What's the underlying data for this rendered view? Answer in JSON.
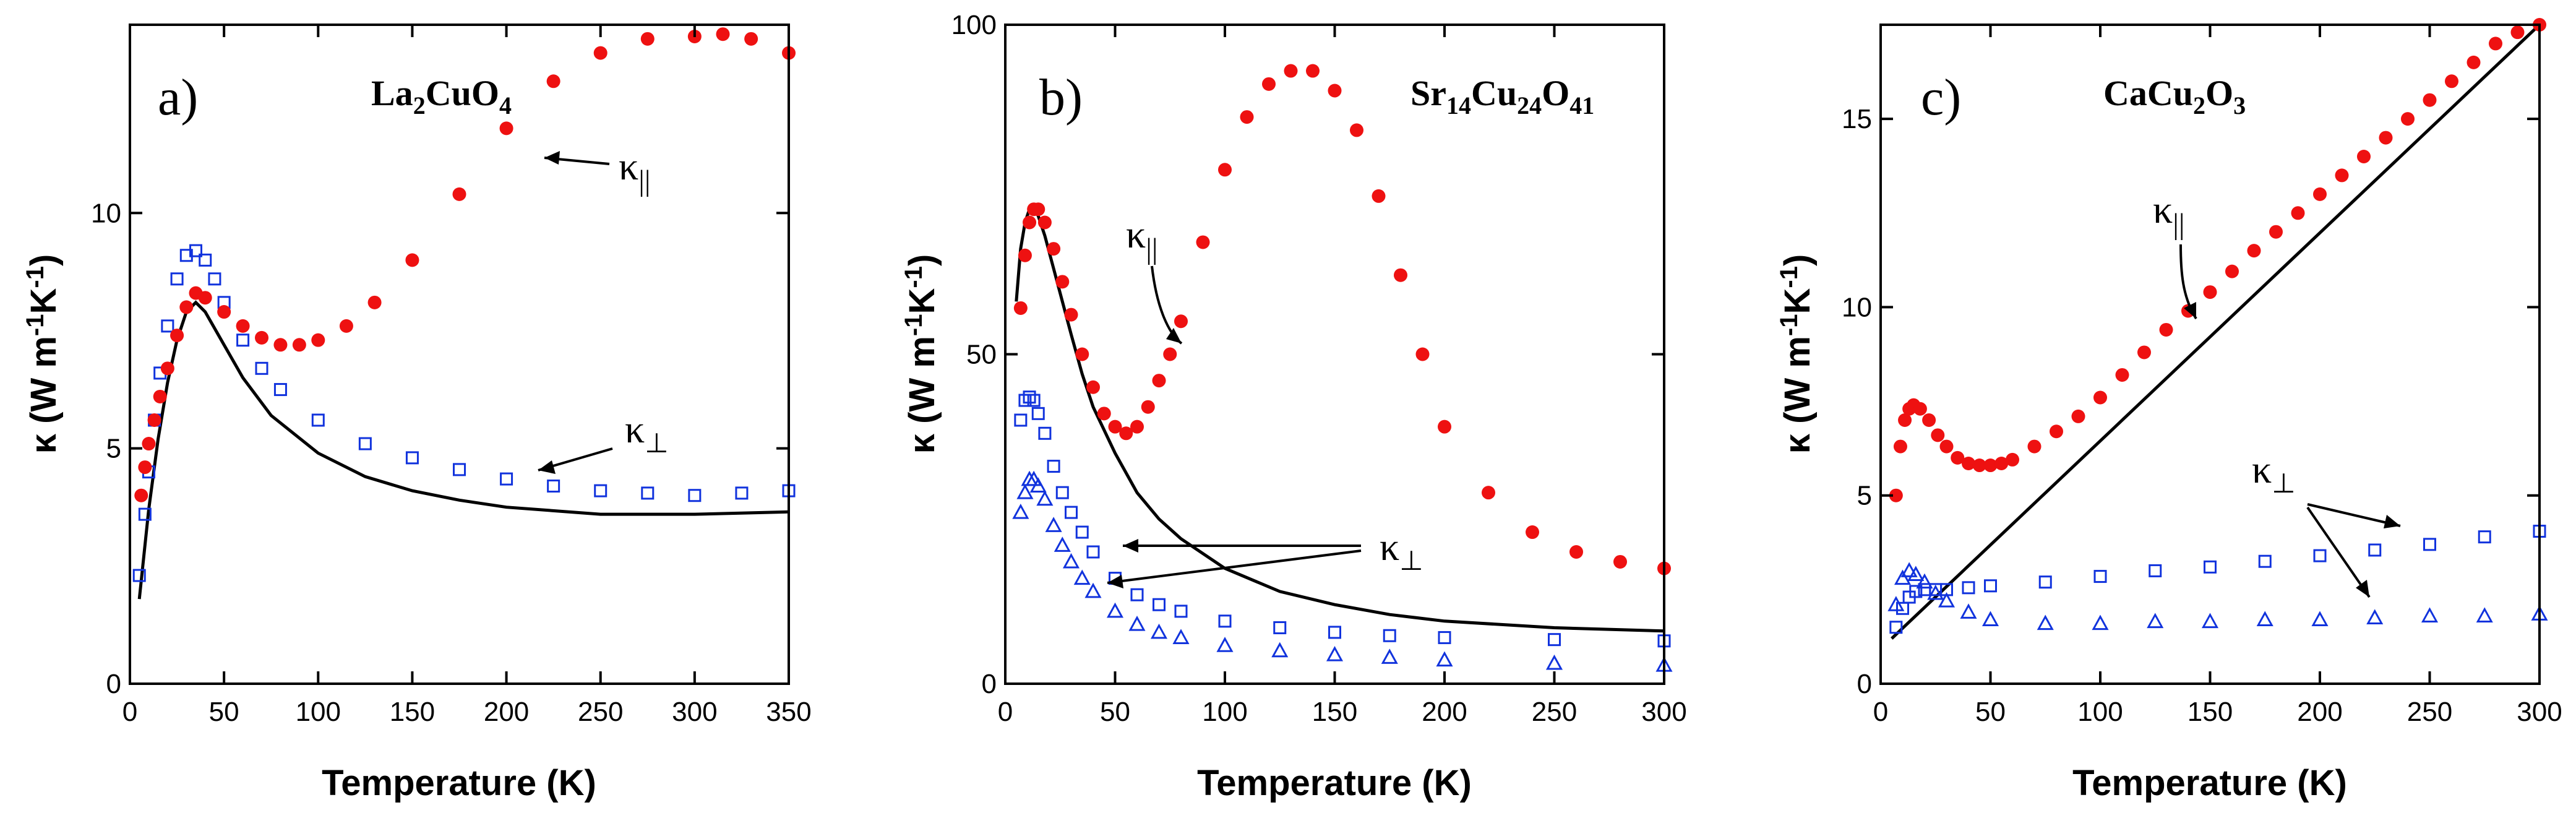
{
  "colors": {
    "red": "#ee1111",
    "blue": "#1133dd",
    "black": "#000000"
  },
  "panels": [
    {
      "tag": "a)",
      "compound": [
        "La",
        "2",
        "CuO",
        "4"
      ],
      "xlabel": "Temperature (K)",
      "ylabel": [
        "κ (W m",
        "-1",
        "K",
        "-1",
        ")"
      ],
      "xticks": [
        "0",
        "50",
        "100",
        "150",
        "200",
        "250",
        "300",
        "350"
      ],
      "yticks": [
        "0",
        "5",
        "10"
      ],
      "kpar": [
        "κ",
        "||"
      ],
      "kperp": [
        "κ",
        "⊥"
      ]
    },
    {
      "tag": "b)",
      "compound": [
        "Sr",
        "14",
        "Cu",
        "24",
        "O",
        "41"
      ],
      "xlabel": "Temperature (K)",
      "ylabel": [
        "κ (W m",
        "-1",
        "K",
        "-1",
        ")"
      ],
      "xticks": [
        "0",
        "50",
        "100",
        "150",
        "200",
        "250",
        "300"
      ],
      "yticks": [
        "0",
        "50",
        "100"
      ],
      "kpar": [
        "κ",
        "||"
      ],
      "kperp": [
        "κ",
        "⊥"
      ]
    },
    {
      "tag": "c)",
      "compound": [
        "CaCu",
        "2",
        "O",
        "3"
      ],
      "xlabel": "Temperature (K)",
      "ylabel": [
        "κ (W m",
        "-1",
        "K",
        "-1",
        ")"
      ],
      "xticks": [
        "0",
        "50",
        "100",
        "150",
        "200",
        "250",
        "300"
      ],
      "yticks": [
        "0",
        "5",
        "10",
        "15"
      ],
      "kpar": [
        "κ",
        "||"
      ],
      "kperp": [
        "κ",
        "⊥"
      ]
    }
  ],
  "chart_data": [
    {
      "type": "scatter",
      "xlim": [
        0,
        350
      ],
      "ylim": [
        0,
        14
      ],
      "xticks": [
        0,
        50,
        100,
        150,
        200,
        250,
        300,
        350
      ],
      "yticks": [
        0,
        5,
        10
      ],
      "series": [
        {
          "marker": "filled-circle",
          "color": "red",
          "x": [
            6,
            8,
            10,
            13,
            16,
            20,
            25,
            30,
            35,
            40,
            50,
            60,
            70,
            80,
            90,
            100,
            115,
            130,
            150,
            175,
            200,
            225,
            250,
            275,
            300,
            315,
            330,
            350
          ],
          "y": [
            4.0,
            4.6,
            5.1,
            5.6,
            6.1,
            6.7,
            7.4,
            8.0,
            8.3,
            8.2,
            7.9,
            7.6,
            7.35,
            7.2,
            7.2,
            7.3,
            7.6,
            8.1,
            9.0,
            10.4,
            11.8,
            12.8,
            13.4,
            13.7,
            13.75,
            13.8,
            13.7,
            13.4
          ]
        },
        {
          "marker": "open-square",
          "color": "blue",
          "x": [
            5,
            8,
            10,
            13,
            16,
            20,
            25,
            30,
            35,
            40,
            45,
            50,
            60,
            70,
            80,
            100,
            125,
            150,
            175,
            200,
            225,
            250,
            275,
            300,
            325,
            350
          ],
          "y": [
            2.3,
            3.6,
            4.5,
            5.6,
            6.6,
            7.6,
            8.6,
            9.1,
            9.2,
            9.0,
            8.6,
            8.1,
            7.3,
            6.7,
            6.25,
            5.6,
            5.1,
            4.8,
            4.55,
            4.35,
            4.2,
            4.1,
            4.05,
            4.0,
            4.05,
            4.1
          ]
        },
        {
          "marker": "line",
          "color": "black",
          "x": [
            5,
            10,
            15,
            20,
            25,
            30,
            35,
            40,
            50,
            60,
            75,
            100,
            125,
            150,
            175,
            200,
            250,
            300,
            350
          ],
          "y": [
            1.8,
            3.7,
            5.2,
            6.4,
            7.3,
            7.9,
            8.1,
            7.9,
            7.2,
            6.5,
            5.7,
            4.9,
            4.4,
            4.1,
            3.9,
            3.75,
            3.6,
            3.6,
            3.65
          ]
        }
      ]
    },
    {
      "type": "scatter",
      "xlim": [
        0,
        300
      ],
      "ylim": [
        0,
        100
      ],
      "xticks": [
        0,
        50,
        100,
        150,
        200,
        250,
        300
      ],
      "yticks": [
        0,
        50,
        100
      ],
      "series": [
        {
          "marker": "filled-circle",
          "color": "red",
          "x": [
            7,
            9,
            11,
            13,
            15,
            18,
            22,
            26,
            30,
            35,
            40,
            45,
            50,
            55,
            60,
            65,
            70,
            75,
            80,
            90,
            100,
            110,
            120,
            130,
            140,
            150,
            160,
            170,
            180,
            190,
            200,
            220,
            240,
            260,
            280,
            300
          ],
          "y": [
            57,
            65,
            70,
            72,
            72,
            70,
            66,
            61,
            56,
            50,
            45,
            41,
            39,
            38,
            39,
            42,
            46,
            50,
            55,
            67,
            78,
            86,
            91,
            93,
            93,
            90,
            84,
            74,
            62,
            50,
            39,
            29,
            23,
            20,
            18.5,
            17.5
          ]
        },
        {
          "marker": "open-square",
          "color": "blue",
          "x": [
            7,
            9,
            11,
            13,
            15,
            18,
            22,
            26,
            30,
            35,
            40,
            50,
            60,
            70,
            80,
            100,
            125,
            150,
            175,
            200,
            250,
            300
          ],
          "y": [
            40,
            43,
            43.5,
            43,
            41,
            38,
            33,
            29,
            26,
            23,
            20,
            16,
            13.5,
            12,
            11,
            9.5,
            8.5,
            7.8,
            7.3,
            7.0,
            6.7,
            6.5
          ]
        },
        {
          "marker": "open-triangle",
          "color": "blue",
          "x": [
            7,
            9,
            11,
            13,
            15,
            18,
            22,
            26,
            30,
            35,
            40,
            50,
            60,
            70,
            80,
            100,
            125,
            150,
            175,
            200,
            250,
            300
          ],
          "y": [
            26,
            29,
            31,
            31,
            30,
            28,
            24,
            21,
            18.5,
            16,
            14,
            11,
            9,
            7.8,
            7,
            5.8,
            5,
            4.4,
            4,
            3.6,
            3.1,
            2.8
          ]
        },
        {
          "marker": "line",
          "color": "black",
          "x": [
            5,
            7,
            9,
            11,
            13,
            15,
            18,
            22,
            26,
            30,
            35,
            40,
            50,
            60,
            70,
            80,
            100,
            125,
            150,
            175,
            200,
            250,
            300
          ],
          "y": [
            58,
            66,
            70,
            72,
            72,
            71,
            68,
            63,
            58,
            53,
            47,
            42,
            35,
            29,
            25,
            22,
            17.5,
            14,
            12,
            10.5,
            9.5,
            8.5,
            8
          ]
        }
      ]
    },
    {
      "type": "scatter",
      "xlim": [
        0,
        300
      ],
      "ylim": [
        0,
        17.5
      ],
      "xticks": [
        0,
        50,
        100,
        150,
        200,
        250,
        300
      ],
      "yticks": [
        0,
        5,
        10,
        15
      ],
      "series": [
        {
          "marker": "filled-circle",
          "color": "red",
          "x": [
            7,
            9,
            11,
            13,
            15,
            18,
            22,
            26,
            30,
            35,
            40,
            45,
            50,
            55,
            60,
            70,
            80,
            90,
            100,
            110,
            120,
            130,
            140,
            150,
            160,
            170,
            180,
            190,
            200,
            210,
            220,
            230,
            240,
            250,
            260,
            270,
            280,
            290,
            300
          ],
          "y": [
            5.0,
            6.3,
            7.0,
            7.3,
            7.4,
            7.3,
            7.0,
            6.6,
            6.3,
            6.0,
            5.85,
            5.8,
            5.8,
            5.85,
            5.95,
            6.3,
            6.7,
            7.1,
            7.6,
            8.2,
            8.8,
            9.4,
            9.9,
            10.4,
            10.95,
            11.5,
            12.0,
            12.5,
            13.0,
            13.5,
            14.0,
            14.5,
            15.0,
            15.5,
            16.0,
            16.5,
            17.0,
            17.3,
            17.5
          ]
        },
        {
          "marker": "open-square",
          "color": "blue",
          "x": [
            7,
            10,
            13,
            16,
            20,
            25,
            30,
            40,
            50,
            75,
            100,
            125,
            150,
            175,
            200,
            225,
            250,
            275,
            300
          ],
          "y": [
            1.5,
            2.0,
            2.3,
            2.45,
            2.5,
            2.5,
            2.5,
            2.55,
            2.6,
            2.7,
            2.85,
            3.0,
            3.1,
            3.25,
            3.4,
            3.55,
            3.7,
            3.9,
            4.05
          ]
        },
        {
          "marker": "open-triangle",
          "color": "blue",
          "x": [
            7,
            10,
            13,
            16,
            20,
            25,
            30,
            40,
            50,
            75,
            100,
            125,
            150,
            175,
            200,
            225,
            250,
            275,
            300
          ],
          "y": [
            2.1,
            2.8,
            3.0,
            2.9,
            2.7,
            2.4,
            2.2,
            1.9,
            1.7,
            1.6,
            1.6,
            1.65,
            1.65,
            1.7,
            1.7,
            1.75,
            1.8,
            1.8,
            1.85
          ]
        },
        {
          "marker": "line",
          "color": "black",
          "x": [
            5,
            300
          ],
          "y": [
            1.2,
            17.5
          ]
        }
      ]
    }
  ]
}
